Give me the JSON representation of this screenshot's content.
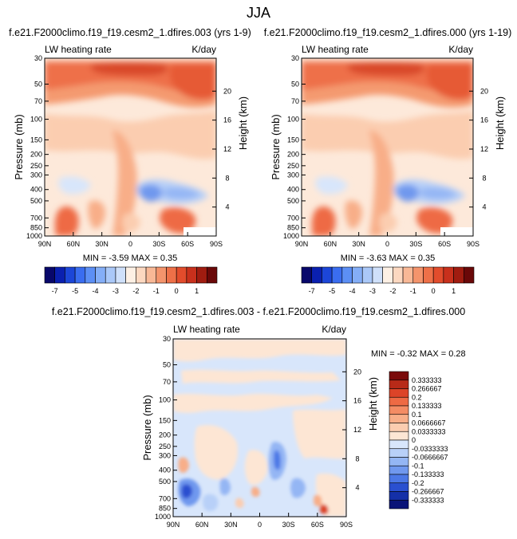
{
  "page": {
    "title": "JJA"
  },
  "panels": [
    {
      "title": "f.e21.F2000climo.f19_f19.cesm2_1.dfires.003 (yrs 1-9)",
      "left_label": "LW heating rate",
      "right_label": "K/day",
      "stats": "MIN =  -3.59  MAX =   0.35"
    },
    {
      "title": "f.e21.F2000climo.f19_f19.cesm2_1.dfires.000 (yrs 1-19)",
      "left_label": "LW heating rate",
      "right_label": "K/day",
      "stats": "MIN =  -3.63  MAX =   0.35"
    },
    {
      "title": "f.e21.F2000climo.f19_f19.cesm2_1.dfires.003 - f.e21.F2000climo.f19_f19.cesm2_1.dfires.000",
      "left_label": "LW heating rate",
      "right_label": "K/day",
      "stats": "MIN =  -0.32  MAX =   0.28"
    }
  ],
  "axes": {
    "ylabel": "Pressure (mb)",
    "y2label": "Height (km)",
    "x_ticks": [
      "90N",
      "60N",
      "30N",
      "0",
      "30S",
      "60S",
      "90S"
    ],
    "p_ticks": [
      "30",
      "50",
      "70",
      "100",
      "150",
      "200",
      "250",
      "300",
      "400",
      "500",
      "700",
      "850",
      "1000"
    ],
    "h_ticks": [
      "20",
      "16",
      "12",
      "8",
      "4"
    ]
  },
  "colorbars": {
    "top_labels": [
      "-7",
      "-5",
      "-4",
      "-3",
      "-2",
      "-1",
      "0",
      "1"
    ],
    "top_colors": [
      "#08086b",
      "#0a20b0",
      "#1c46d8",
      "#3a6df0",
      "#5c8ff5",
      "#84aef7",
      "#aac8f8",
      "#cfe0fa",
      "#fdf0e4",
      "#fcd8c0",
      "#f8b896",
      "#f4946c",
      "#ee7048",
      "#e24c2c",
      "#c8301c",
      "#a01c10",
      "#6a0808"
    ],
    "diff_labels": [
      "0.333333",
      "0.266667",
      "0.2",
      "0.133333",
      "0.1",
      "0.0666667",
      "0.0333333",
      "0",
      "-0.0333333",
      "-0.0666667",
      "-0.1",
      "-0.133333",
      "-0.2",
      "-0.266667",
      "-0.333333"
    ],
    "diff_colors": [
      "#7a0a0a",
      "#b82a18",
      "#dc4428",
      "#ee6a44",
      "#f48c64",
      "#f8ae88",
      "#fbcdb0",
      "#fde6d4",
      "#d8e6fb",
      "#b8d0f8",
      "#94b6f4",
      "#7098ee",
      "#4c78e6",
      "#2a50d0",
      "#1430a8",
      "#0a1478"
    ]
  },
  "chart_data": [
    {
      "type": "heatmap",
      "title": "f.e21.F2000climo.f19_f19.cesm2_1.dfires.003 (yrs 1-9)",
      "variable": "LW heating rate",
      "units": "K/day",
      "xlabel": "",
      "ylabel": "Pressure (mb)",
      "y2label": "Height (km)",
      "x_range": [
        "90N",
        "90S"
      ],
      "ylim": [
        30,
        1000
      ],
      "y_scale": "log",
      "min": -3.59,
      "max": 0.35,
      "levels": [
        -7,
        -6,
        -5,
        -4.5,
        -4,
        -3.5,
        -3,
        -2.5,
        -2,
        -1.5,
        -1,
        -0.5,
        0,
        0.5,
        1
      ]
    },
    {
      "type": "heatmap",
      "title": "f.e21.F2000climo.f19_f19.cesm2_1.dfires.000 (yrs 1-19)",
      "variable": "LW heating rate",
      "units": "K/day",
      "xlabel": "",
      "ylabel": "Pressure (mb)",
      "y2label": "Height (km)",
      "x_range": [
        "90N",
        "90S"
      ],
      "ylim": [
        30,
        1000
      ],
      "y_scale": "log",
      "min": -3.63,
      "max": 0.35,
      "levels": [
        -7,
        -6,
        -5,
        -4.5,
        -4,
        -3.5,
        -3,
        -2.5,
        -2,
        -1.5,
        -1,
        -0.5,
        0,
        0.5,
        1
      ]
    },
    {
      "type": "heatmap",
      "title": "f.e21.F2000climo.f19_f19.cesm2_1.dfires.003 - f.e21.F2000climo.f19_f19.cesm2_1.dfires.000",
      "variable": "LW heating rate",
      "units": "K/day",
      "xlabel": "",
      "ylabel": "Pressure (mb)",
      "y2label": "Height (km)",
      "x_range": [
        "90N",
        "90S"
      ],
      "ylim": [
        30,
        1000
      ],
      "y_scale": "log",
      "min": -0.32,
      "max": 0.28,
      "levels": [
        -0.333333,
        -0.266667,
        -0.2,
        -0.133333,
        -0.1,
        -0.0666667,
        -0.0333333,
        0,
        0.0333333,
        0.0666667,
        0.1,
        0.133333,
        0.2,
        0.266667,
        0.333333
      ]
    }
  ]
}
